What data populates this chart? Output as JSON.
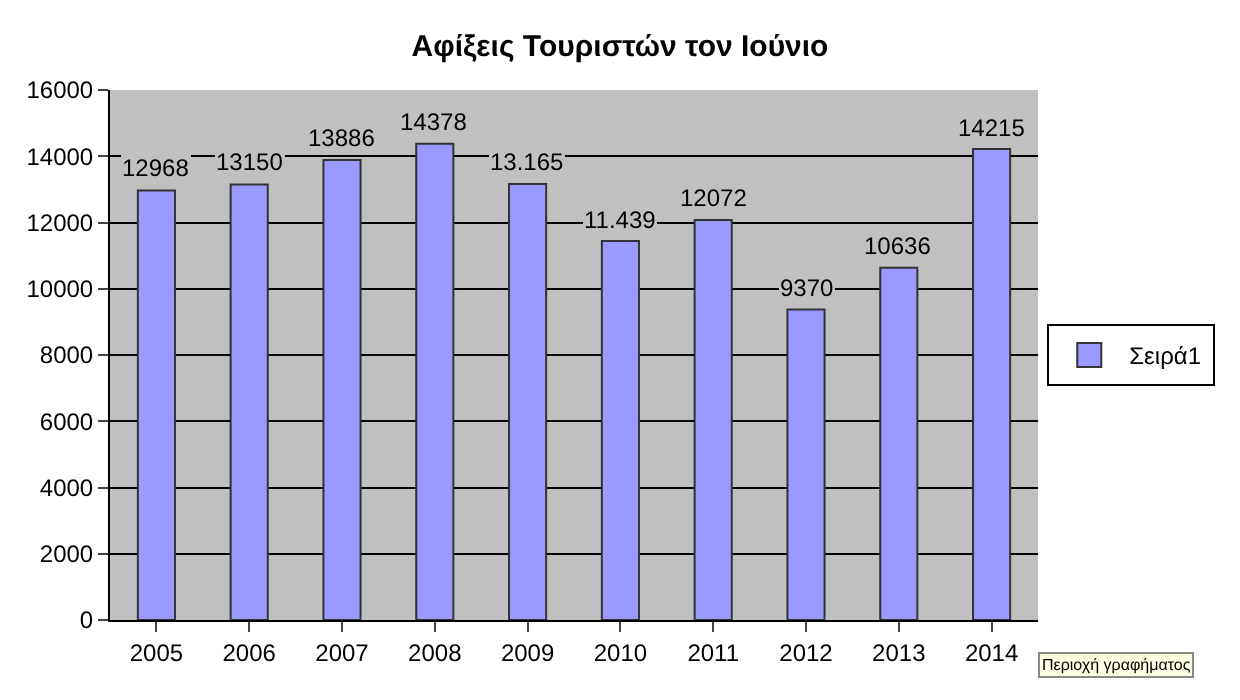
{
  "chart_data": {
    "type": "bar",
    "title": "Αφίξεις Τουριστών τον Ιούνιο",
    "categories": [
      "2005",
      "2006",
      "2007",
      "2008",
      "2009",
      "2010",
      "2011",
      "2012",
      "2013",
      "2014"
    ],
    "series": [
      {
        "name": "Σειρά1",
        "color": "#9999ff",
        "values": [
          12968,
          13150,
          13886,
          14378,
          13165,
          11439,
          12072,
          9370,
          10636,
          14215
        ],
        "value_labels": [
          "12968",
          "13150",
          "13886",
          "14378",
          "13.165",
          "11.439",
          "12072",
          "9370",
          "10636",
          "14215"
        ]
      }
    ],
    "ylim": [
      0,
      16000
    ],
    "yticks": [
      0,
      2000,
      4000,
      6000,
      8000,
      10000,
      12000,
      14000,
      16000
    ],
    "grid": "y",
    "legend": "right",
    "annotations": [
      "Περιοχή γραφήματος"
    ]
  }
}
